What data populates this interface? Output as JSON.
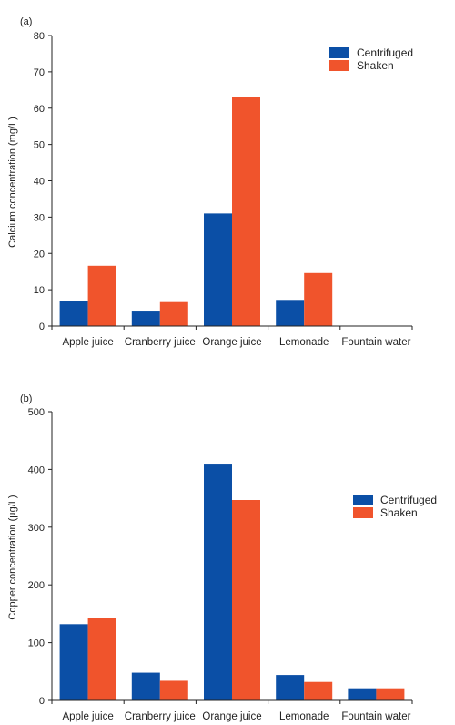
{
  "colors": {
    "centrifuged": "#0b4fa6",
    "shaken": "#f0542c",
    "axis": "#222222"
  },
  "chart_data": [
    {
      "type": "bar",
      "panel": "(a)",
      "title": "",
      "xlabel": "",
      "ylabel": "Calcium concentration (mg/L)",
      "categories": [
        "Apple juice",
        "Cranberry juice",
        "Orange juice",
        "Lemonade",
        "Fountain water"
      ],
      "ylim": [
        0,
        80
      ],
      "yticks": [
        0,
        10,
        20,
        30,
        40,
        50,
        60,
        70,
        80
      ],
      "legend_position": "top-right",
      "series": [
        {
          "name": "Centrifuged",
          "values": [
            6.8,
            4.0,
            31.0,
            7.2,
            0
          ]
        },
        {
          "name": "Shaken",
          "values": [
            16.6,
            6.6,
            63.0,
            14.6,
            0
          ]
        }
      ]
    },
    {
      "type": "bar",
      "panel": "(b)",
      "title": "",
      "xlabel": "",
      "ylabel": "Copper concentration (µg/L)",
      "categories": [
        "Apple juice",
        "Cranberry juice",
        "Orange juice",
        "Lemonade",
        "Fountain water"
      ],
      "ylim": [
        0,
        500
      ],
      "yticks": [
        0,
        100,
        200,
        300,
        400,
        500
      ],
      "legend_position": "right",
      "series": [
        {
          "name": "Centrifuged",
          "values": [
            132,
            48,
            410,
            44,
            21
          ]
        },
        {
          "name": "Shaken",
          "values": [
            142,
            34,
            347,
            32,
            21
          ]
        }
      ]
    }
  ]
}
